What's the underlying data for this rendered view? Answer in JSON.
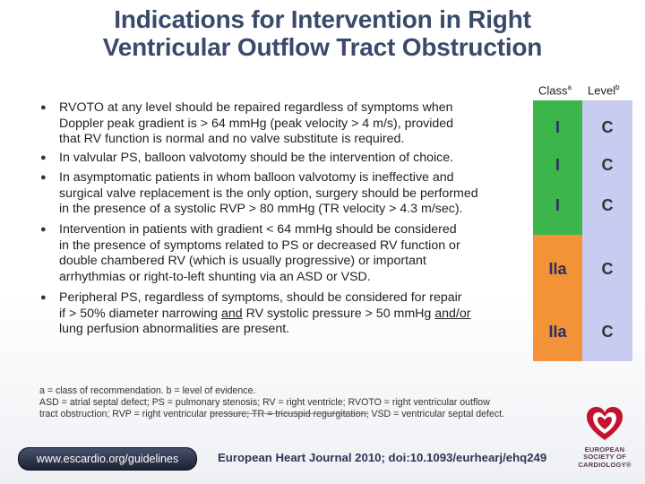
{
  "title": {
    "line1": "Indications for Intervention in Right",
    "line2": "Ventricular Outflow Tract Obstruction"
  },
  "headers": {
    "class": "Class",
    "class_sup": "a",
    "level": "Level",
    "level_sup": "b"
  },
  "items": [
    {
      "lines": [
        "RVOTO at any level should be repaired regardless of symptoms when",
        "Doppler peak gradient  is > 64 mmHg (peak velocity > 4 m/s), provided",
        "that RV function is normal and no valve substitute is required."
      ],
      "class": "I",
      "level": "C"
    },
    {
      "lines": [
        "In valvular PS, balloon valvotomy should be the intervention of choice."
      ],
      "class": "I",
      "level": "C"
    },
    {
      "lines": [
        "In asymptomatic patients in whom balloon valvotomy is ineffective and",
        "surgical valve replacement is the only option, surgery should be performed",
        "in the presence of a systolic RVP > 80 mmHg (TR velocity > 4.3 m/sec)."
      ],
      "class": "I",
      "level": "C"
    },
    {
      "lines": [
        "Intervention in patients with gradient < 64 mmHg should be considered",
        "in the presence of symptoms related to PS or decreased RV function or",
        "double chambered RV (which is usually progressive) or important",
        "arrhythmias or right-to-left shunting via an ASD or VSD."
      ],
      "class": "IIa",
      "level": "C"
    },
    {
      "line1": "Peripheral PS, regardless of symptoms, should be considered for repair",
      "line2_a": "if > 50% diameter narrowing ",
      "line2_u1": "and",
      "line2_b": " RV systolic pressure > 50 mmHg ",
      "line2_u2": "and/or",
      "line3": "lung perfusion abnormalities are present.",
      "class": "IIa",
      "level": "C"
    }
  ],
  "footnotes": {
    "line1": "a = class of recommendation. b = level of evidence.",
    "line2": "ASD = atrial septal defect; PS = pulmonary stenosis; RV = right ventricle; RVOTO = right ventricular outflow",
    "line3_a": "tract obstruction; RVP = right ventricular ",
    "line3_strike": "pressure; TR = tricuspid regurgitation;",
    "line3_b": " VSD = ventricular septal defect."
  },
  "footer": {
    "url": "www.escardio.org/guidelines",
    "journal": "European Heart Journal 2010; doi:10.1093/eurhearj/ehq249"
  },
  "logo": {
    "line1": "EUROPEAN",
    "line2": "SOCIETY OF",
    "line3": "CARDIOLOGY®"
  },
  "colors": {
    "class_I": "#3cb54a",
    "class_IIa": "#f39237",
    "level_bg": "#c8ccf0",
    "title": "#3b4a6b",
    "logo_red": "#c4122f"
  }
}
